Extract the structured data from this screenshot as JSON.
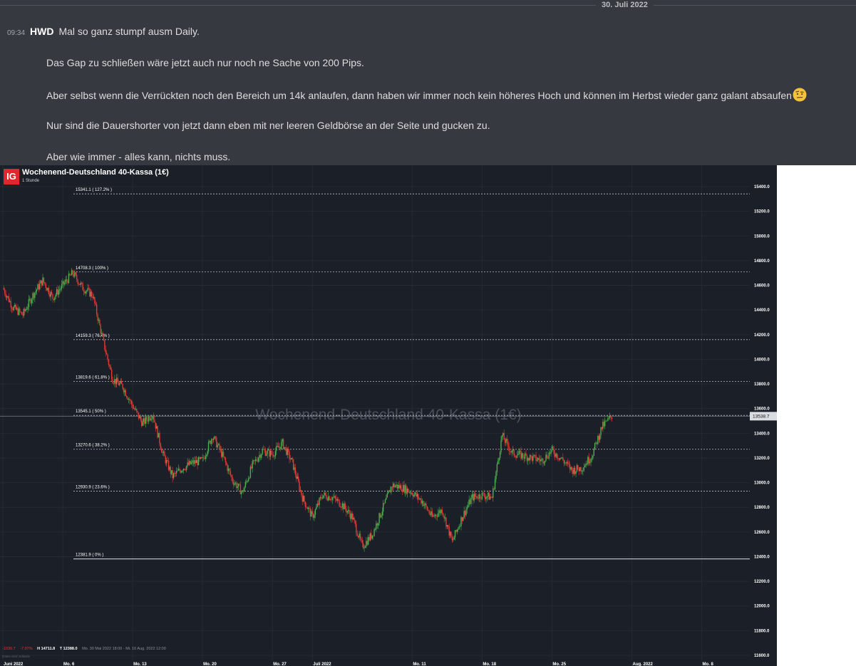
{
  "chat": {
    "date_divider": "30. Juli 2022",
    "message": {
      "time": "09:34",
      "author": "HWD",
      "first_line": "Mal so ganz stumpf ausm Daily.",
      "lines": [
        "Das Gap zu schließen wäre jetzt auch nur noch ne Sache von 200 Pips.",
        "Aber selbst wenn die Verrückten noch den Bereich um 14k anlaufen, dann haben wir immer noch kein höheres Hoch und können im Herbst wieder ganz galant absaufen",
        "Nur sind die Dauershorter von jetzt dann eben mit ner leeren Geldbörse an der Seite und gucken zu.",
        "Aber wie immer - alles kann, nichts muss."
      ],
      "emoji": "raised-eyebrow-emoji"
    }
  },
  "chart": {
    "logo": "IG",
    "title": "Wochenend-Deutschland 40-Kassa (1€)",
    "interval": "1 Stunde",
    "watermark": "Wochenend-Deutschland 40-Kassa (1€)",
    "current_price_label": "13538.7",
    "stats": {
      "change": "-1030.7",
      "change_pct": "-7.07%",
      "high": "H 14711.8",
      "low": "T 12388.0",
      "range": "Mo. 30 Mai 2022 18:00 - Mi. 10 Aug. 2022 12:00"
    },
    "note": "Daten sind indikativ",
    "colors": {
      "background": "#1b1f27",
      "up": "#4caf50",
      "down": "#e53935",
      "fib_line": "#b8bcc4",
      "text": "#ffffff",
      "accent": "#e2272c"
    }
  },
  "chart_data": {
    "type": "candlestick",
    "title": "Wochenend-Deutschland 40-Kassa (1€)",
    "interval": "1 Stunde",
    "ylim": [
      11550,
      15520
    ],
    "y_ticks": [
      11600,
      11800,
      12000,
      12200,
      12400,
      12600,
      12800,
      13000,
      13200,
      13400,
      13600,
      13800,
      14000,
      14200,
      14400,
      14600,
      14800,
      15000,
      15200,
      15400
    ],
    "x_ticks": [
      "Juni 2022",
      "Mo. 6",
      "Mo. 13",
      "Mo. 20",
      "Mo. 27",
      "Juli 2022",
      "Mo. 11",
      "Mo. 18",
      "Mo. 25",
      "Aug. 2022",
      "Mo. 8"
    ],
    "x_index_range": [
      0,
      71
    ],
    "x_tick_index": [
      0,
      6,
      13,
      20,
      27,
      31,
      41,
      48,
      55,
      63,
      70
    ],
    "fib_levels": [
      {
        "label": "15341.1 ( 127.2% )",
        "value": 15341.1
      },
      {
        "label": "14708.3 ( 100% )",
        "value": 14708.3
      },
      {
        "label": "14159.3 ( 76.4% )",
        "value": 14159.3
      },
      {
        "label": "13819.6 ( 61.8% )",
        "value": 13819.6
      },
      {
        "label": "13545.1 ( 50% )",
        "value": 13545.1
      },
      {
        "label": "13270.6 ( 38.2% )",
        "value": 13270.6
      },
      {
        "label": "12930.9 ( 23.6% )",
        "value": 12930.9
      },
      {
        "label": "12381.9 ( 0% )",
        "value": 12381.9
      }
    ],
    "current_price": 13538.7,
    "price_path": [
      [
        0,
        14580
      ],
      [
        1,
        14420
      ],
      [
        2,
        14360
      ],
      [
        3,
        14520
      ],
      [
        4,
        14640
      ],
      [
        5,
        14500
      ],
      [
        6,
        14600
      ],
      [
        7,
        14700
      ],
      [
        8,
        14580
      ],
      [
        9,
        14520
      ],
      [
        10,
        14160
      ],
      [
        11,
        13840
      ],
      [
        12,
        13780
      ],
      [
        13,
        13620
      ],
      [
        14,
        13480
      ],
      [
        15,
        13560
      ],
      [
        16,
        13240
      ],
      [
        17,
        13050
      ],
      [
        18,
        13120
      ],
      [
        19,
        13160
      ],
      [
        20,
        13180
      ],
      [
        21,
        13380
      ],
      [
        22,
        13220
      ],
      [
        23,
        13020
      ],
      [
        24,
        12920
      ],
      [
        25,
        13140
      ],
      [
        26,
        13260
      ],
      [
        27,
        13230
      ],
      [
        28,
        13320
      ],
      [
        29,
        13160
      ],
      [
        30,
        12880
      ],
      [
        31,
        12720
      ],
      [
        32,
        12900
      ],
      [
        33,
        12880
      ],
      [
        34,
        12820
      ],
      [
        35,
        12720
      ],
      [
        36,
        12480
      ],
      [
        37,
        12580
      ],
      [
        38,
        12780
      ],
      [
        39,
        12980
      ],
      [
        40,
        12960
      ],
      [
        41,
        12920
      ],
      [
        42,
        12850
      ],
      [
        43,
        12720
      ],
      [
        44,
        12780
      ],
      [
        45,
        12520
      ],
      [
        46,
        12720
      ],
      [
        47,
        12880
      ],
      [
        48,
        12900
      ],
      [
        49,
        12880
      ],
      [
        50,
        13380
      ],
      [
        51,
        13240
      ],
      [
        52,
        13220
      ],
      [
        53,
        13200
      ],
      [
        54,
        13180
      ],
      [
        55,
        13260
      ],
      [
        56,
        13190
      ],
      [
        57,
        13100
      ],
      [
        58,
        13120
      ],
      [
        59,
        13220
      ],
      [
        60,
        13450
      ],
      [
        61,
        13538.7
      ]
    ]
  }
}
